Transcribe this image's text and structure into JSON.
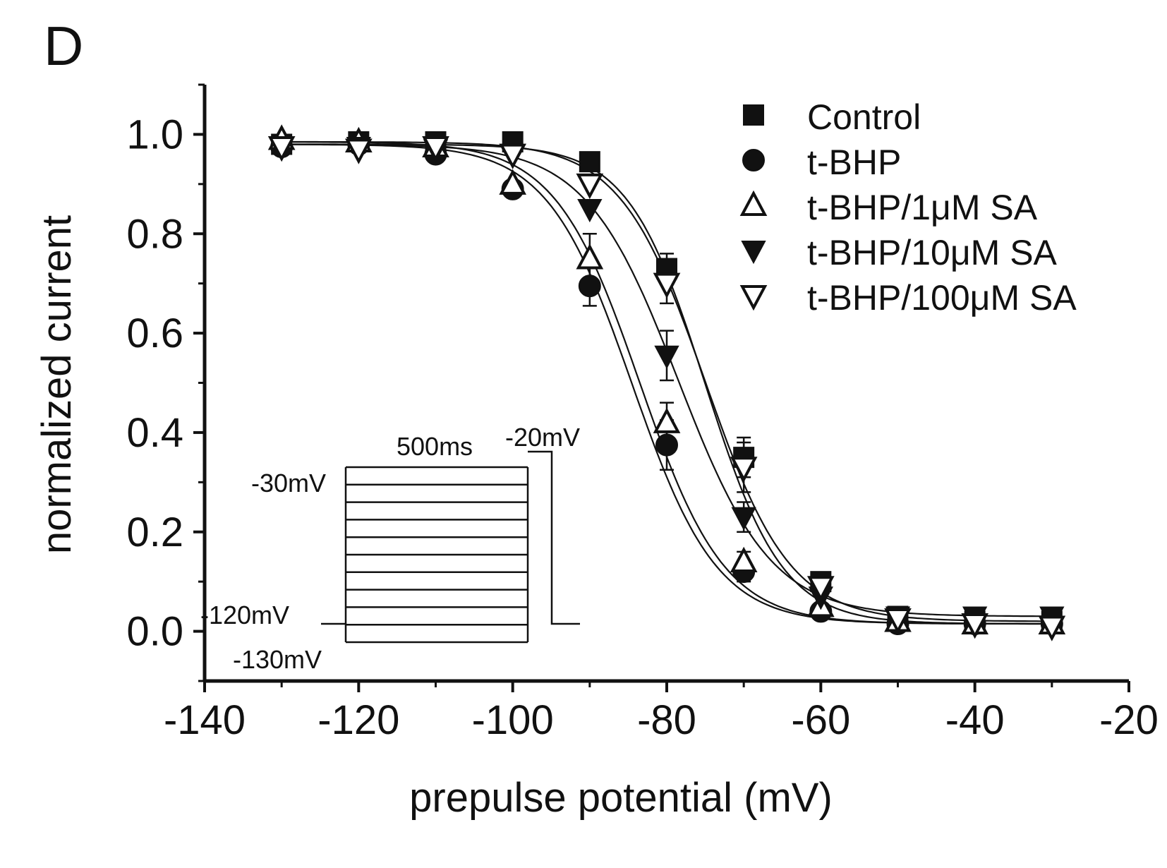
{
  "panel_label": "D",
  "chart_data": {
    "type": "scatter",
    "xlabel": "prepulse potential (mV)",
    "ylabel": "normalized current",
    "xlim": [
      -140,
      -20
    ],
    "ylim": [
      -0.1,
      1.1
    ],
    "xticks": [
      -140,
      -120,
      -100,
      -80,
      -60,
      -40,
      -20
    ],
    "yticks": [
      0.0,
      0.2,
      0.4,
      0.6,
      0.8,
      1.0
    ],
    "xtick_labels": [
      "-140",
      "-120",
      "-100",
      "-80",
      "-60",
      "-40",
      "-20"
    ],
    "ytick_labels": [
      "0.0",
      "0.2",
      "0.4",
      "0.6",
      "0.8",
      "1.0"
    ],
    "legend_position": "top-right",
    "x": [
      -130,
      -120,
      -110,
      -100,
      -90,
      -80,
      -70,
      -60,
      -50,
      -40,
      -30
    ],
    "series": [
      {
        "name": "Control",
        "marker": "square-filled",
        "values": [
          0.98,
          0.985,
          0.985,
          0.985,
          0.945,
          0.73,
          0.35,
          0.1,
          0.03,
          0.02,
          0.02
        ],
        "errors": [
          0,
          0,
          0,
          0,
          0,
          0.03,
          0.04,
          0,
          0,
          0,
          0
        ],
        "fit": {
          "top": 0.985,
          "bottom": 0.02,
          "v_half": -75.0,
          "k": 5.5
        }
      },
      {
        "name": "t-BHP",
        "marker": "circle-filled",
        "values": [
          0.975,
          0.98,
          0.96,
          0.89,
          0.695,
          0.375,
          0.12,
          0.04,
          0.015,
          0.015,
          0.015
        ],
        "errors": [
          0,
          0,
          0,
          0,
          0.04,
          0.05,
          0.02,
          0,
          0,
          0,
          0
        ],
        "fit": {
          "top": 0.98,
          "bottom": 0.015,
          "v_half": -84.5,
          "k": 5.5
        }
      },
      {
        "name": "t-BHP/1μM SA",
        "marker": "triangle-up-open",
        "values": [
          0.99,
          0.985,
          0.975,
          0.9,
          0.75,
          0.42,
          0.14,
          0.05,
          0.02,
          0.015,
          0.015
        ],
        "errors": [
          0,
          0,
          0,
          0,
          0.05,
          0.04,
          0.02,
          0,
          0,
          0,
          0
        ],
        "fit": {
          "top": 0.985,
          "bottom": 0.015,
          "v_half": -83.5,
          "k": 5.5
        }
      },
      {
        "name": "t-BHP/10μM SA",
        "marker": "triangle-down-filled",
        "values": [
          0.975,
          0.975,
          0.97,
          0.96,
          0.85,
          0.555,
          0.23,
          0.07,
          0.03,
          0.03,
          0.03
        ],
        "errors": [
          0,
          0,
          0,
          0,
          0,
          0.05,
          0.03,
          0,
          0,
          0,
          0
        ],
        "fit": {
          "top": 0.98,
          "bottom": 0.03,
          "v_half": -78.5,
          "k": 6.0
        }
      },
      {
        "name": "t-BHP/100μM SA",
        "marker": "triangle-down-open",
        "values": [
          0.975,
          0.97,
          0.975,
          0.96,
          0.9,
          0.7,
          0.33,
          0.09,
          0.025,
          0.015,
          0.01
        ],
        "errors": [
          0,
          0,
          0,
          0,
          0,
          0.04,
          0.05,
          0,
          0,
          0,
          0
        ],
        "fit": {
          "top": 0.98,
          "bottom": 0.015,
          "v_half": -75.0,
          "k": 5.0
        }
      }
    ]
  },
  "protocol_inset": {
    "duration_label": "500ms",
    "test_pulse_label": "-20mV",
    "top_label": "-30mV",
    "holding_label": "-120mV",
    "bottom_label": "-130mV",
    "step_count": 11
  }
}
